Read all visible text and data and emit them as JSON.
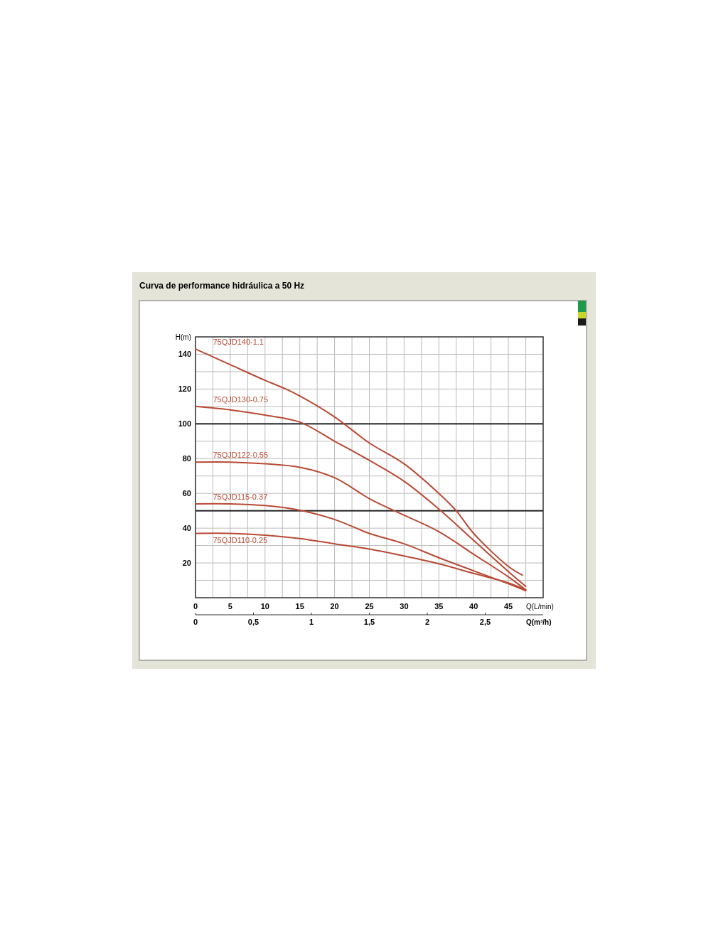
{
  "chart_data": {
    "type": "line",
    "title": "Curva de performance hidráulica a 50 Hz",
    "xlabel": "Q(L/min)",
    "ylabel": "H(m)",
    "x2label": "Q(m³/h)",
    "xlim": [
      0,
      50
    ],
    "ylim": [
      0,
      150
    ],
    "x2lim": [
      0,
      3
    ],
    "xticks": [
      0,
      {
        "value": 2.5,
        "label": null
      },
      5,
      {
        "value": 7.5,
        "label": null
      },
      10,
      {
        "value": 12.5,
        "label": null
      },
      15,
      {
        "value": 17.5,
        "label": null
      },
      20,
      {
        "value": 22.5,
        "label": null
      },
      25,
      {
        "value": 27.5,
        "label": null
      },
      30,
      {
        "value": 32.5,
        "label": null
      },
      35,
      {
        "value": 37.5,
        "label": null
      },
      40,
      {
        "value": 42.5,
        "label": null
      },
      45,
      {
        "value": 47.5,
        "label": null
      }
    ],
    "yticks": [
      {
        "value": 10,
        "label": null
      },
      20,
      {
        "value": 30,
        "label": null
      },
      40,
      {
        "value": 50,
        "label": null
      },
      60,
      {
        "value": 70,
        "label": null
      },
      80,
      {
        "value": 90,
        "label": null
      },
      100,
      {
        "value": 110,
        "label": null
      },
      120,
      {
        "value": 130,
        "label": null
      },
      140
    ],
    "x2ticks": [
      0,
      {
        "value": 0.5,
        "label": "0,5"
      },
      1,
      {
        "value": 1.5,
        "label": "1,5"
      },
      2,
      {
        "value": 2.5,
        "label": "2,5"
      }
    ],
    "grid": true,
    "marker": "none",
    "line_style": "solid",
    "ref_lines": [
      {
        "axis": "y",
        "value": 100,
        "color": "#222222"
      },
      {
        "axis": "y",
        "value": 50,
        "color": "#222222"
      }
    ],
    "series": [
      {
        "name": "75QJD140-1.1",
        "color": "#b84a34",
        "x": [
          0,
          5,
          10,
          13,
          15,
          20,
          25,
          30,
          35,
          37.5,
          40,
          45,
          47
        ],
        "values": [
          143,
          134,
          125,
          120,
          116,
          104,
          89,
          77,
          60,
          50,
          37,
          18,
          13
        ]
      },
      {
        "name": "75QJD130-0.75",
        "color": "#b84a34",
        "x": [
          0,
          5,
          10,
          15,
          20,
          25,
          30,
          35,
          40,
          45,
          47.5
        ],
        "values": [
          110,
          108,
          105,
          101,
          90,
          79,
          67,
          51,
          33,
          15,
          6.5
        ]
      },
      {
        "name": "75QJD122-0.55",
        "color": "#b84a34",
        "x": [
          0,
          5,
          10,
          15,
          20,
          25,
          28.6,
          35,
          40,
          45,
          47.5
        ],
        "values": [
          78,
          78,
          77,
          75,
          69,
          57,
          50,
          38,
          25,
          12,
          4.5
        ]
      },
      {
        "name": "75QJD115-0.37",
        "color": "#b84a34",
        "x": [
          0,
          5,
          10,
          15.4,
          20,
          25,
          30,
          35,
          40,
          45,
          47.5
        ],
        "values": [
          54,
          54,
          53,
          50,
          45,
          37,
          31,
          23,
          15.5,
          8,
          4
        ]
      },
      {
        "name": "75QJD110-0.25",
        "color": "#b84a34",
        "x": [
          0,
          5,
          10,
          15,
          20,
          25,
          30,
          35,
          40,
          45,
          47.5
        ],
        "values": [
          37,
          37,
          36,
          34,
          31,
          28,
          24,
          19.5,
          14,
          8.5,
          4.5
        ]
      }
    ]
  }
}
